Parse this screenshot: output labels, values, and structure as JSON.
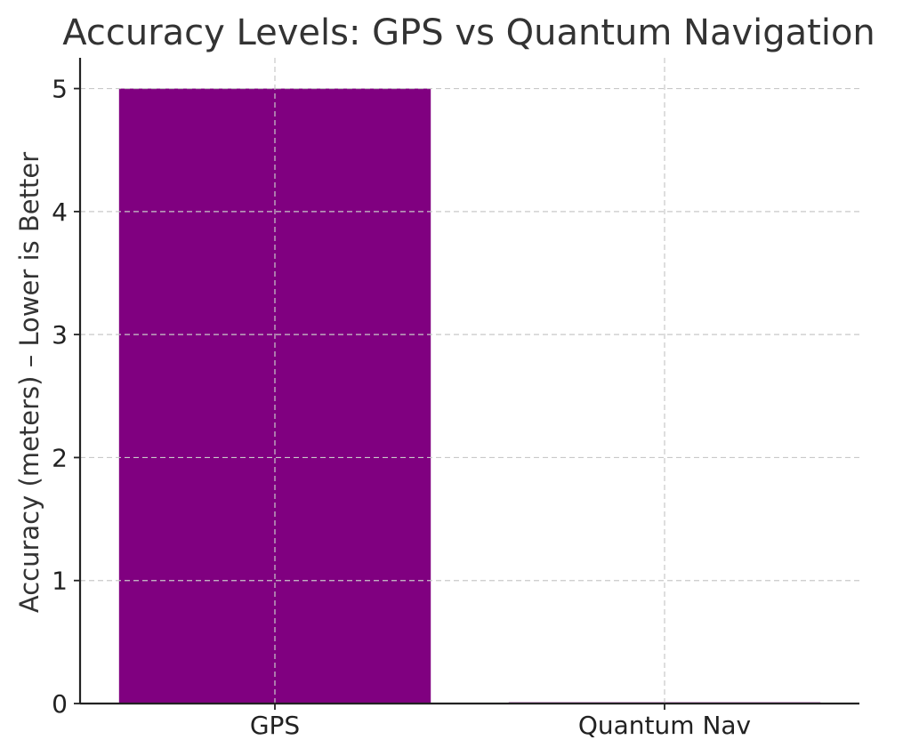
{
  "chart_data": {
    "type": "bar",
    "title": "Accuracy Levels: GPS vs Quantum Navigation",
    "xlabel": "",
    "ylabel": "Accuracy (meters) – Lower is Better",
    "categories": [
      "GPS",
      "Quantum Nav"
    ],
    "values": [
      5,
      0.01
    ],
    "ylim": [
      0,
      5.25
    ],
    "yticks": [
      0,
      1,
      2,
      3,
      4,
      5
    ],
    "ytick_labels": [
      "0",
      "1",
      "2",
      "3",
      "4",
      "5"
    ],
    "grid": true,
    "bar_colors": [
      "#800080",
      "#800080"
    ]
  }
}
